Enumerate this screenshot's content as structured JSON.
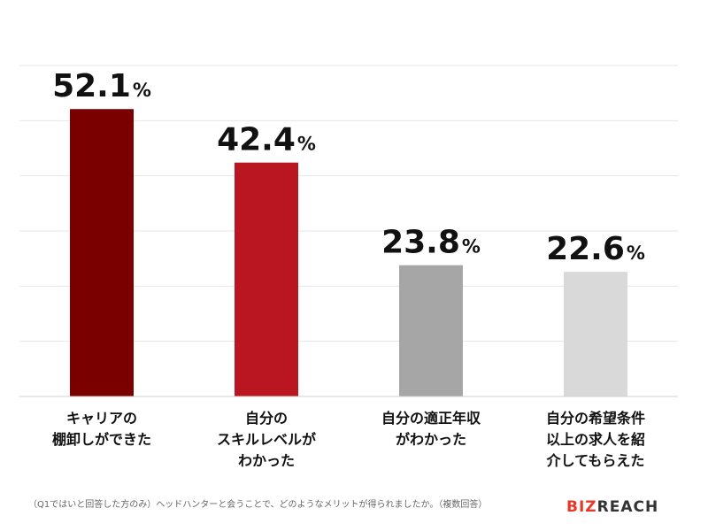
{
  "chart_data": {
    "type": "bar",
    "categories": [
      [
        "キャリアの",
        "棚卸しができた"
      ],
      [
        "自分の",
        "スキルレベルが",
        "わかった"
      ],
      [
        "自分の適正年収",
        "がわかった"
      ],
      [
        "自分の希望条件",
        "以上の求人を紹",
        "介してもらえた"
      ]
    ],
    "values": [
      52.1,
      42.4,
      23.8,
      22.6
    ],
    "value_unit": "%",
    "ylim": [
      0,
      60
    ],
    "grid": true,
    "colors": [
      "#7a0000",
      "#b91621",
      "#a6a6a6",
      "#d9d9d9"
    ]
  },
  "footnote": "（Q1ではいと回答した方のみ）ヘッドハンターと会うことで、どのようなメリットが得られましたか。（複数回答）",
  "logo": {
    "text": "BIZREACH",
    "color": "#e83828"
  }
}
